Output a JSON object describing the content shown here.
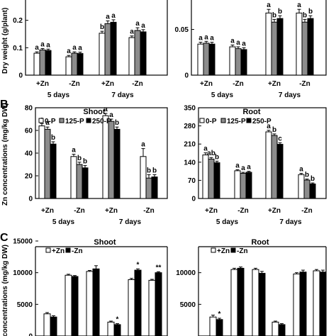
{
  "panel_labels": [
    "B",
    "C"
  ],
  "legend_b": [
    "0-P",
    "125-P",
    "250-P"
  ],
  "legend_c": [
    "+Zn",
    "-Zn"
  ],
  "colors": {
    "white": "#ffffff",
    "gray": "#8c8c8c",
    "black": "#000000",
    "ink": "#000000"
  },
  "chart_data": [
    {
      "id": "A1",
      "type": "bar",
      "title": "",
      "ylabel": "Dry weight (g/plant)",
      "ylim": [
        0,
        0.3
      ],
      "yticks": [
        0,
        0.1,
        0.2
      ],
      "ytick_labels": [
        "0",
        "0.1",
        "0.2"
      ],
      "categories": [
        "+Zn",
        "-Zn",
        "+Zn",
        "-Zn"
      ],
      "groups": [
        {
          "label": "5 days",
          "span": [
            0,
            1
          ]
        },
        {
          "label": "7 days",
          "span": [
            2,
            3
          ]
        }
      ],
      "series": [
        {
          "color": "white",
          "values": [
            0.08,
            0.067,
            0.153,
            0.137
          ],
          "errors": [
            0.005,
            0.005,
            0.007,
            0.006
          ]
        },
        {
          "color": "gray",
          "values": [
            0.092,
            0.08,
            0.188,
            0.163
          ],
          "errors": [
            0.005,
            0.005,
            0.01,
            0.01
          ]
        },
        {
          "color": "black",
          "values": [
            0.09,
            0.079,
            0.193,
            0.158
          ],
          "errors": [
            0.005,
            0.005,
            0.009,
            0.008
          ]
        }
      ],
      "sig": [
        [
          "a",
          "a",
          "b",
          "a"
        ],
        [
          "a",
          "a",
          "a",
          "a"
        ],
        [
          "a",
          "a",
          "a",
          "a"
        ]
      ]
    },
    {
      "id": "A2",
      "type": "bar",
      "title": "",
      "ylabel": "",
      "ylim": [
        0,
        0.09
      ],
      "yticks": [
        0,
        0.05
      ],
      "ytick_labels": [
        "0",
        "0.05"
      ],
      "categories": [
        "+Zn",
        "-Zn",
        "+Zn",
        "-Zn"
      ],
      "groups": [
        {
          "label": "5 days",
          "span": [
            0,
            1
          ]
        },
        {
          "label": "7 days",
          "span": [
            2,
            3
          ]
        }
      ],
      "series": [
        {
          "color": "white",
          "values": [
            0.034,
            0.031,
            0.068,
            0.068
          ],
          "errors": [
            0.002,
            0.002,
            0.004,
            0.004
          ]
        },
        {
          "color": "gray",
          "values": [
            0.035,
            0.029,
            0.058,
            0.058
          ],
          "errors": [
            0.002,
            0.002,
            0.003,
            0.003
          ]
        },
        {
          "color": "black",
          "values": [
            0.034,
            0.028,
            0.062,
            0.062
          ],
          "errors": [
            0.002,
            0.002,
            0.003,
            0.003
          ]
        }
      ],
      "sig": [
        [
          "a",
          "a",
          "a",
          "a"
        ],
        [
          "a",
          "a",
          "b",
          "b"
        ],
        [
          "a",
          "a",
          "b",
          "b"
        ]
      ]
    },
    {
      "id": "B1",
      "type": "bar",
      "title": "Shoot",
      "ylabel": "Zn concentrations (mg/kg DW)",
      "ylim": [
        0,
        80
      ],
      "yticks": [
        0,
        20,
        40,
        60,
        80
      ],
      "ytick_labels": [
        "0",
        "20",
        "40",
        "60",
        "80"
      ],
      "categories": [
        "+Zn",
        "-Zn",
        "+Zn",
        "-Zn"
      ],
      "groups": [
        {
          "label": "5 days",
          "span": [
            0,
            1
          ]
        },
        {
          "label": "7 days",
          "span": [
            2,
            3
          ]
        }
      ],
      "series": [
        {
          "color": "white",
          "values": [
            64,
            37,
            73,
            37
          ],
          "errors": [
            2,
            2,
            2,
            7
          ]
        },
        {
          "color": "gray",
          "values": [
            61,
            30,
            68,
            18
          ],
          "errors": [
            2,
            2,
            2,
            3
          ]
        },
        {
          "color": "black",
          "values": [
            48,
            27,
            61,
            19
          ],
          "errors": [
            2,
            2,
            2,
            2
          ]
        }
      ],
      "sig": [
        [
          "a",
          "a",
          "a",
          "a"
        ],
        [
          "a",
          "b",
          "a",
          "b"
        ],
        [
          "b",
          "b",
          "b",
          "b"
        ]
      ]
    },
    {
      "id": "B2",
      "type": "bar",
      "title": "Root",
      "ylabel": "",
      "ylim": [
        0,
        350
      ],
      "yticks": [
        0,
        70,
        140,
        210,
        280,
        350
      ],
      "ytick_labels": [
        "0",
        "70",
        "140",
        "210",
        "280",
        "350"
      ],
      "categories": [
        "+Zn",
        "-Zn",
        "+Zn",
        "-Zn"
      ],
      "groups": [
        {
          "label": "5 days",
          "span": [
            0,
            1
          ]
        },
        {
          "label": "7 days",
          "span": [
            2,
            3
          ]
        }
      ],
      "series": [
        {
          "color": "white",
          "values": [
            168,
            107,
            257,
            92
          ],
          "errors": [
            8,
            4,
            6,
            5
          ]
        },
        {
          "color": "gray",
          "values": [
            152,
            97,
            243,
            71
          ],
          "errors": [
            6,
            4,
            6,
            4
          ]
        },
        {
          "color": "black",
          "values": [
            138,
            101,
            209,
            56
          ],
          "errors": [
            6,
            4,
            6,
            4
          ]
        }
      ],
      "sig": [
        [
          "a",
          "a",
          "a",
          "a"
        ],
        [
          "ab",
          "a",
          "b",
          "b"
        ],
        [
          "b",
          "a",
          "c",
          "b"
        ]
      ]
    },
    {
      "id": "C1",
      "type": "bar",
      "title": "Shoot",
      "ylabel": "concentrations (mg/kg DW)",
      "ylim": [
        0,
        15000
      ],
      "yticks": [
        0,
        5000,
        10000,
        15000
      ],
      "ytick_labels": [
        "0",
        "5000",
        "10000",
        "15000"
      ],
      "categories": [
        "",
        "",
        "",
        "",
        "",
        ""
      ],
      "series": [
        {
          "color": "white",
          "values": [
            3500,
            9600,
            10200,
            2200,
            8900,
            8800
          ],
          "errors": [
            200,
            150,
            150,
            150,
            200,
            150
          ]
        },
        {
          "color": "black",
          "values": [
            3000,
            9400,
            10600,
            1800,
            10400,
            10000
          ],
          "errors": [
            200,
            150,
            500,
            150,
            200,
            150
          ]
        }
      ],
      "sig": [
        [
          "",
          "",
          "",
          "",
          "",
          ""
        ],
        [
          "",
          "",
          "",
          "*",
          "*",
          "**"
        ]
      ]
    },
    {
      "id": "C2",
      "type": "bar",
      "title": "Root",
      "ylabel": "",
      "ylim": [
        0,
        15000
      ],
      "yticks": [
        5000,
        10000
      ],
      "ytick_labels": [
        "5000",
        "10000"
      ],
      "categories": [
        "",
        "",
        "",
        "",
        "",
        ""
      ],
      "series": [
        {
          "color": "white",
          "values": [
            3000,
            10500,
            10500,
            2200,
            9800,
            10300
          ],
          "errors": [
            300,
            200,
            200,
            150,
            200,
            200
          ]
        },
        {
          "color": "black",
          "values": [
            2600,
            10700,
            9900,
            1800,
            10100,
            10100
          ],
          "errors": [
            200,
            200,
            300,
            150,
            300,
            300
          ]
        }
      ],
      "sig": [
        [
          "",
          "",
          "",
          "",
          "",
          ""
        ],
        [
          "*",
          "",
          "",
          "",
          "",
          ""
        ]
      ]
    }
  ]
}
